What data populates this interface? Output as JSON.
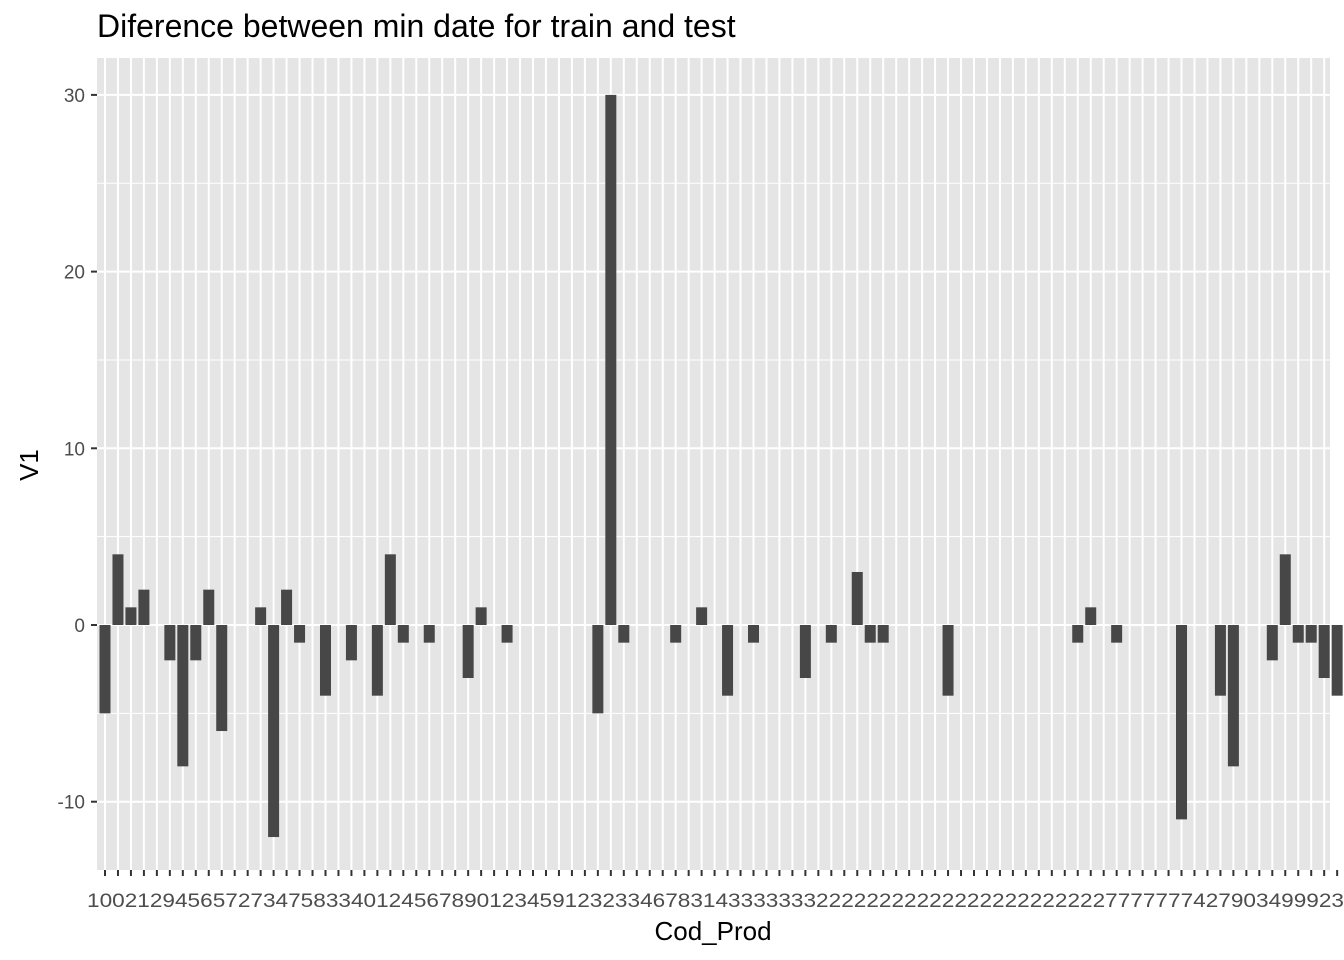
{
  "chart_data": {
    "type": "bar",
    "title": "Diference between min date for train and test",
    "xlabel": "Cod_Prod",
    "ylabel": "V1",
    "y_ticks": [
      -10,
      0,
      10,
      20,
      30
    ],
    "x_tick_text": "1002129456572734758334012456789012345912323346783143333333222222222222222222222227777777427903499923",
    "values": [
      -5,
      4,
      1,
      2,
      0,
      -2,
      -8,
      -2,
      2,
      -6,
      0,
      0,
      1,
      -12,
      2,
      -1,
      0,
      -4,
      0,
      -2,
      0,
      -4,
      4,
      -1,
      0,
      -1,
      0,
      0,
      -3,
      1,
      0,
      -1,
      0,
      0,
      0,
      0,
      0,
      0,
      -5,
      30,
      -1,
      0,
      0,
      0,
      -1,
      0,
      1,
      0,
      -4,
      0,
      -1,
      0,
      0,
      0,
      -3,
      0,
      -1,
      0,
      3,
      -1,
      -1,
      0,
      0,
      0,
      0,
      -4,
      0,
      0,
      0,
      0,
      0,
      0,
      0,
      0,
      0,
      -1,
      1,
      0,
      -1,
      0,
      0,
      0,
      0,
      -11,
      0,
      0,
      -4,
      -8,
      0,
      0,
      -2,
      4,
      -1,
      -1,
      -3,
      -4,
      0,
      0,
      0,
      0,
      0,
      0,
      0,
      0,
      0,
      0
    ],
    "grid": true,
    "legend": "none",
    "bar_color": "#474747",
    "panel_color": "#e5e5e5",
    "grid_color": "#ffffff"
  }
}
